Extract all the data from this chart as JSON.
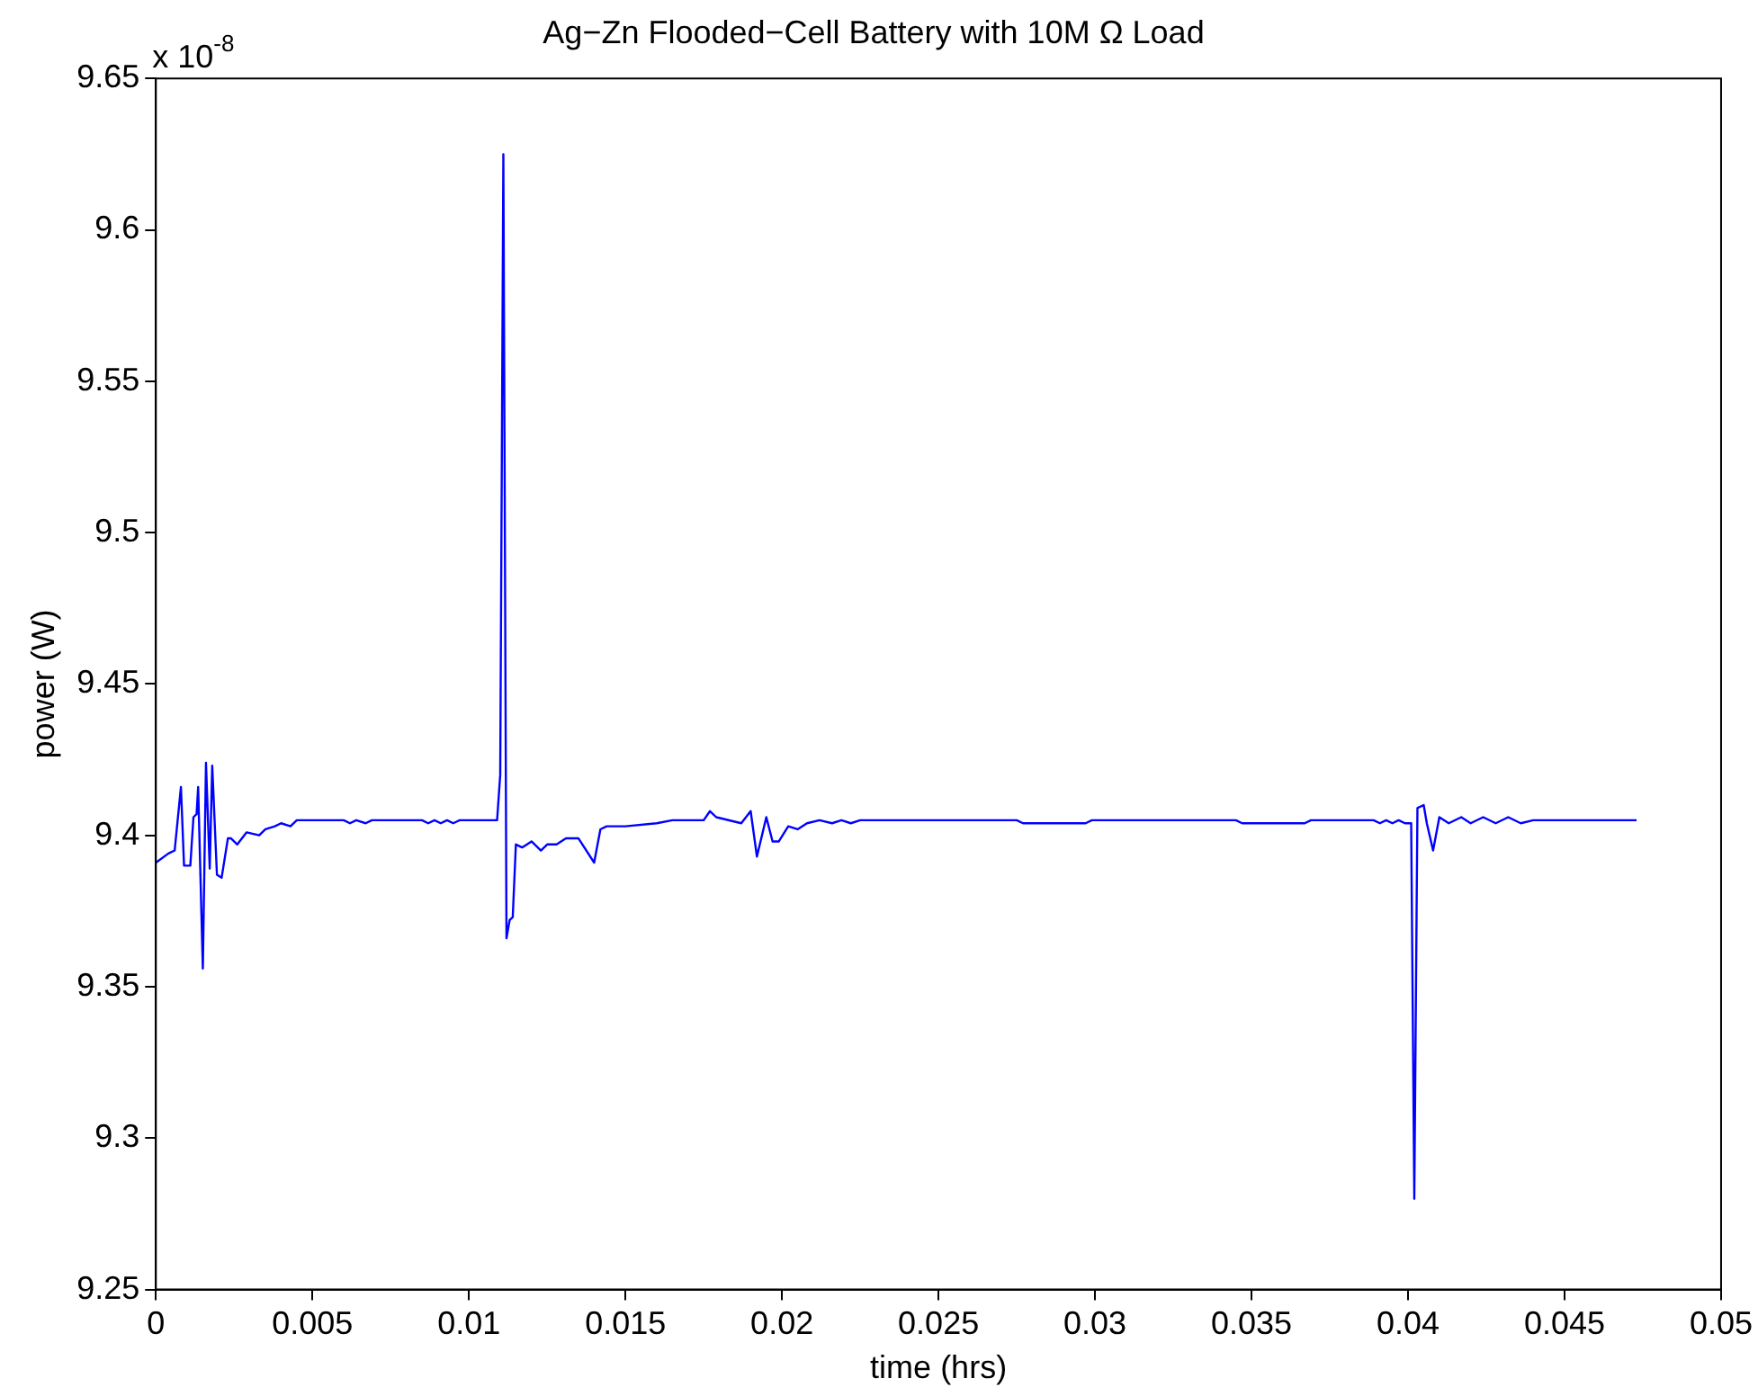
{
  "chart_data": {
    "type": "line",
    "title": "Ag−Zn Flooded−Cell Battery with 10M Ω Load",
    "xlabel": "time (hrs)",
    "ylabel": "power (W)",
    "annotations": [
      "x 10$^{-8}$"
    ],
    "x": [
      0,
      0.0004,
      0.0006,
      0.0008,
      0.0009,
      0.0011,
      0.0012,
      0.0013,
      0.00135,
      0.0015,
      0.0016,
      0.00172,
      0.0018,
      0.00195,
      0.0021,
      0.0023,
      0.0024,
      0.0026,
      0.0029,
      0.0033,
      0.0035,
      0.0038,
      0.004,
      0.0043,
      0.0045,
      0.0049,
      0.0055,
      0.006,
      0.0062,
      0.0064,
      0.0067,
      0.0069,
      0.0071,
      0.0085,
      0.0087,
      0.0089,
      0.0091,
      0.0093,
      0.0095,
      0.0097,
      0.0099,
      0.0109,
      0.011,
      0.0111,
      0.0112,
      0.0113,
      0.0114,
      0.0115,
      0.0117,
      0.012,
      0.0123,
      0.0125,
      0.0128,
      0.0131,
      0.0135,
      0.014,
      0.0142,
      0.0144,
      0.015,
      0.016,
      0.0165,
      0.0175,
      0.0177,
      0.0179,
      0.0187,
      0.019,
      0.0192,
      0.0195,
      0.0197,
      0.0199,
      0.0202,
      0.0205,
      0.0208,
      0.0212,
      0.0216,
      0.0219,
      0.0222,
      0.0225,
      0.0231,
      0.0275,
      0.0277,
      0.0297,
      0.0299,
      0.0302,
      0.0345,
      0.0347,
      0.0367,
      0.0369,
      0.0389,
      0.0391,
      0.0393,
      0.0395,
      0.0397,
      0.0399,
      0.0401,
      0.0402,
      0.0403,
      0.0405,
      0.0406,
      0.0408,
      0.041,
      0.0413,
      0.0417,
      0.042,
      0.0424,
      0.0428,
      0.0432,
      0.0436,
      0.044,
      0.0445,
      0.0473
    ],
    "values": [
      9.391,
      9.394,
      9.395,
      9.416,
      9.39,
      9.39,
      9.406,
      9.407,
      9.416,
      9.356,
      9.424,
      9.389,
      9.423,
      9.387,
      9.386,
      9.399,
      9.399,
      9.397,
      9.401,
      9.4,
      9.402,
      9.403,
      9.404,
      9.403,
      9.405,
      9.405,
      9.405,
      9.405,
      9.404,
      9.405,
      9.404,
      9.405,
      9.405,
      9.405,
      9.404,
      9.405,
      9.404,
      9.405,
      9.404,
      9.405,
      9.405,
      9.405,
      9.42,
      9.625,
      9.366,
      9.372,
      9.373,
      9.397,
      9.396,
      9.398,
      9.395,
      9.397,
      9.397,
      9.399,
      9.399,
      9.391,
      9.402,
      9.403,
      9.403,
      9.404,
      9.405,
      9.405,
      9.408,
      9.406,
      9.404,
      9.408,
      9.393,
      9.406,
      9.398,
      9.398,
      9.403,
      9.402,
      9.404,
      9.405,
      9.404,
      9.405,
      9.404,
      9.405,
      9.405,
      9.405,
      9.404,
      9.404,
      9.405,
      9.405,
      9.405,
      9.404,
      9.404,
      9.405,
      9.405,
      9.404,
      9.405,
      9.404,
      9.405,
      9.404,
      9.404,
      9.28,
      9.409,
      9.41,
      9.404,
      9.395,
      9.406,
      9.404,
      9.406,
      9.404,
      9.406,
      9.404,
      9.406,
      9.404,
      9.405,
      9.405,
      9.405
    ],
    "color": "#0000ff",
    "xlim": [
      0,
      0.05
    ],
    "xticks": [
      0,
      0.005,
      0.01,
      0.015,
      0.02,
      0.025,
      0.03,
      0.035,
      0.04,
      0.045,
      0.05
    ],
    "ylim": [
      9.25,
      9.65
    ],
    "yticks": [
      9.25,
      9.3,
      9.35,
      9.4,
      9.45,
      9.5,
      9.55,
      9.6,
      9.65
    ],
    "marker": "none",
    "line_style": "solid"
  }
}
